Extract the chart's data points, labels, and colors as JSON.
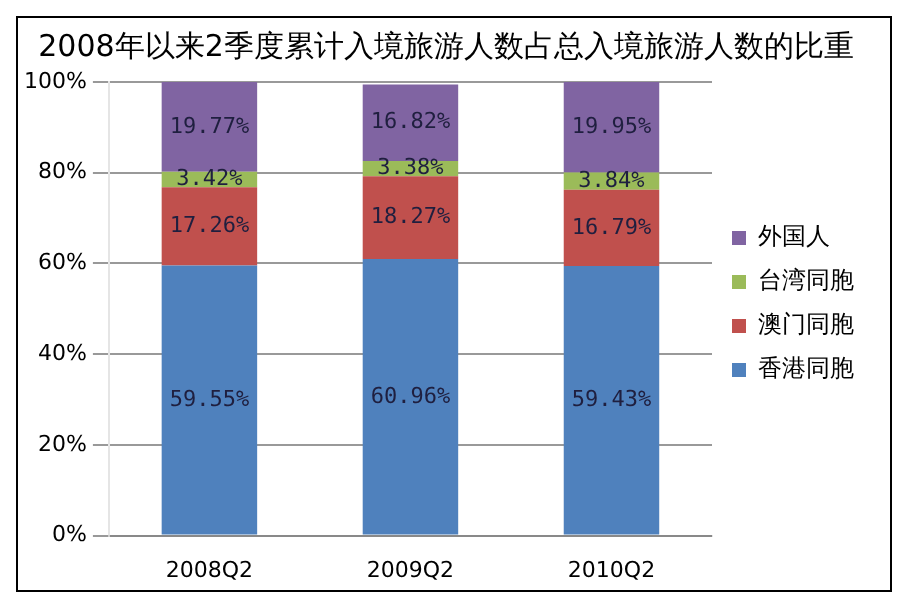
{
  "chart_data": {
    "type": "bar",
    "title": "2008年以来2季度累计入境旅游人数占总入境旅游人数的比重",
    "categories": [
      "2008Q2",
      "2009Q2",
      "2010Q2"
    ],
    "stacked": true,
    "ylim": [
      0,
      100
    ],
    "yticks": [
      {
        "value": 0,
        "label": "0%"
      },
      {
        "value": 20,
        "label": "20%"
      },
      {
        "value": 40,
        "label": "40%"
      },
      {
        "value": 60,
        "label": "60%"
      },
      {
        "value": 80,
        "label": "80%"
      },
      {
        "value": 100,
        "label": "100%"
      }
    ],
    "grid": "y",
    "legend": "right",
    "series": [
      {
        "name": "香港同胞",
        "color": "#4f81bd",
        "values": [
          59.55,
          60.96,
          59.43
        ],
        "value_labels": [
          "59.55%",
          "60.96%",
          "59.43%"
        ]
      },
      {
        "name": "澳门同胞",
        "color": "#c0504d",
        "values": [
          17.26,
          18.27,
          16.79
        ],
        "value_labels": [
          "17.26%",
          "18.27%",
          "16.79%"
        ]
      },
      {
        "name": "台湾同胞",
        "color": "#9bbb59",
        "values": [
          3.42,
          3.38,
          3.84
        ],
        "value_labels": [
          "3.42%",
          "3.38%",
          "3.84%"
        ]
      },
      {
        "name": "外国人",
        "color": "#8064a2",
        "values": [
          19.77,
          16.82,
          19.95
        ],
        "value_labels": [
          "19.77%",
          "16.82%",
          "19.95%"
        ]
      }
    ]
  }
}
